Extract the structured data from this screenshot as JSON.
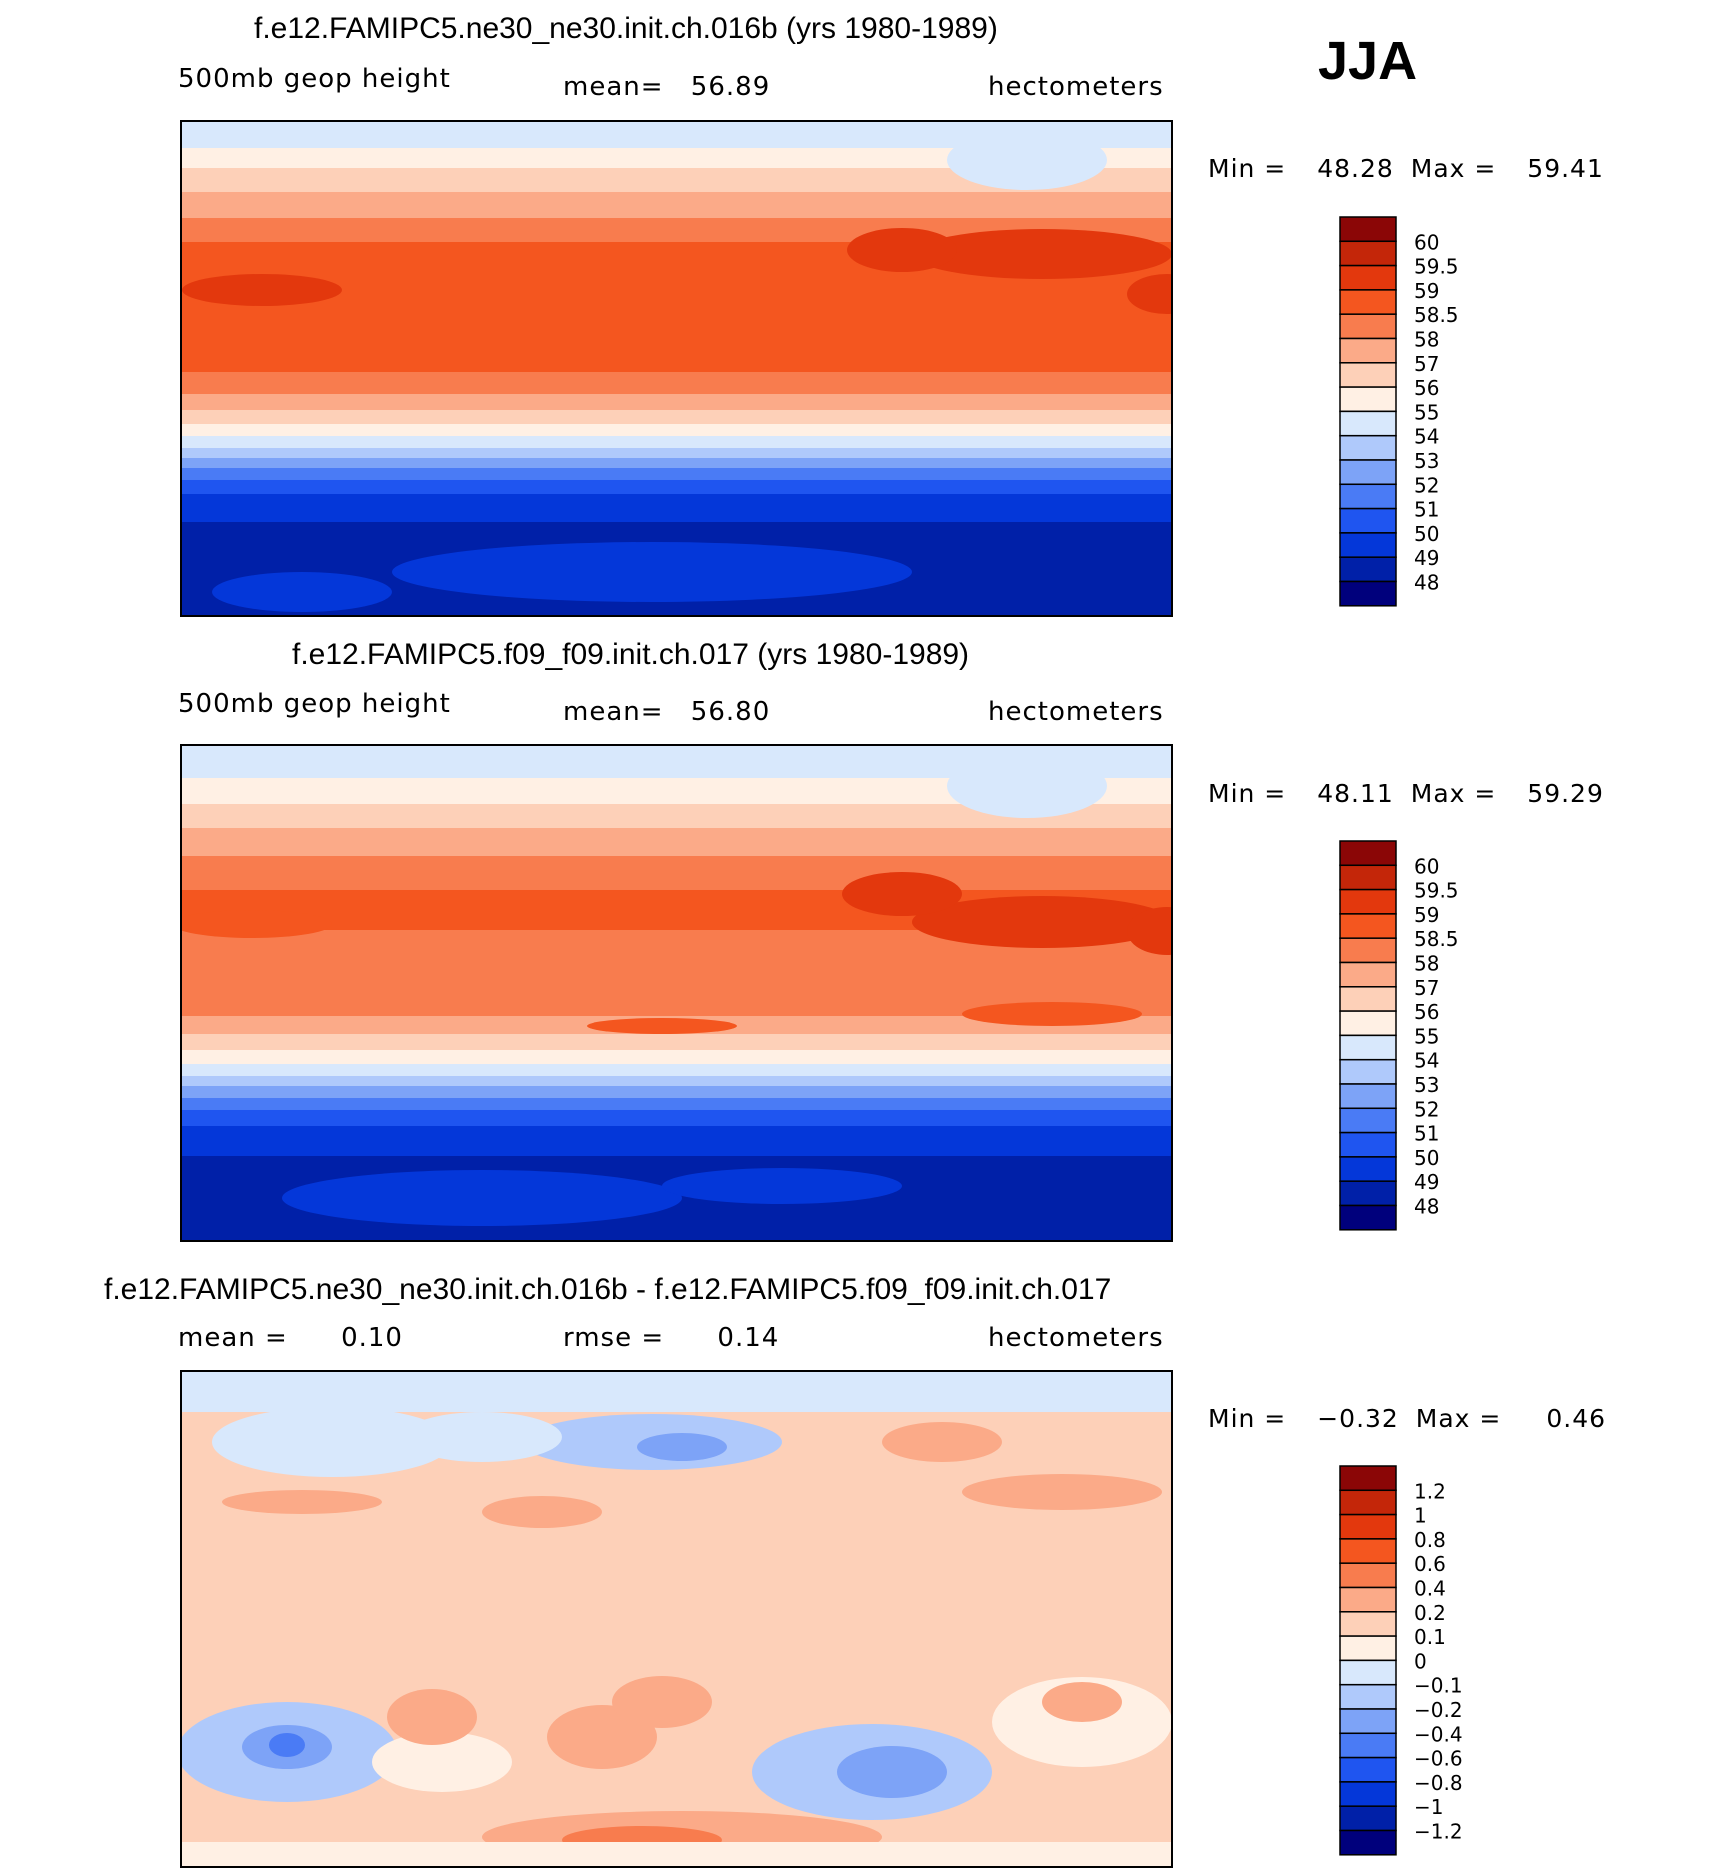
{
  "season": "JJA",
  "units": "hectometers",
  "colors": {
    "abs_scale": [
      "#00007c",
      "#0020a8",
      "#0437d9",
      "#1f55f0",
      "#4a7bf5",
      "#7da3f7",
      "#afc9fb",
      "#d8e8fc",
      "#fff0e4",
      "#fdd0b8",
      "#fbaa88",
      "#f87c4e",
      "#f4561f",
      "#e3380d",
      "#c42609",
      "#8b0606"
    ],
    "diff_scale": [
      "#00007c",
      "#0020a8",
      "#0437d9",
      "#1f55f0",
      "#4a7bf5",
      "#7da3f7",
      "#afc9fb",
      "#d8e8fc",
      "#fff0e4",
      "#fdd0b8",
      "#fbaa88",
      "#f87c4e",
      "#f4561f",
      "#e3380d",
      "#c42609",
      "#8b0606"
    ]
  },
  "chart_data": [
    {
      "type": "heatmap",
      "title": "f.e12.FAMIPC5.ne30_ne30.init.ch.016b (yrs 1980-1989)",
      "variable": "500mb geop height",
      "mean_label": "mean=",
      "mean": "56.89",
      "units": "hectometers",
      "min_label": "Min =",
      "min": "48.28",
      "max_label": "Max =",
      "max": "59.41",
      "contour_levels": [
        "60",
        "59.5",
        "59",
        "58.5",
        "58",
        "57",
        "56",
        "55",
        "54",
        "53",
        "52",
        "51",
        "50",
        "49",
        "48"
      ]
    },
    {
      "type": "heatmap",
      "title": "f.e12.FAMIPC5.f09_f09.init.ch.017 (yrs 1980-1989)",
      "variable": "500mb geop height",
      "mean_label": "mean=",
      "mean": "56.80",
      "units": "hectometers",
      "min_label": "Min =",
      "min": "48.11",
      "max_label": "Max =",
      "max": "59.29",
      "contour_levels": [
        "60",
        "59.5",
        "59",
        "58.5",
        "58",
        "57",
        "56",
        "55",
        "54",
        "53",
        "52",
        "51",
        "50",
        "49",
        "48"
      ]
    },
    {
      "type": "heatmap",
      "title": "f.e12.FAMIPC5.ne30_ne30.init.ch.016b - f.e12.FAMIPC5.f09_f09.init.ch.017",
      "mean_label": "mean =",
      "mean": "0.10",
      "rmse_label": "rmse =",
      "rmse": "0.14",
      "units": "hectometers",
      "min_label": "Min =",
      "min": "−0.32",
      "max_label": "Max =",
      "max": "0.46",
      "contour_levels": [
        "1.2",
        "1",
        "0.8",
        "0.6",
        "0.4",
        "0.2",
        "0.1",
        "0",
        "−0.1",
        "−0.2",
        "−0.4",
        "−0.6",
        "−0.8",
        "−1",
        "−1.2"
      ]
    }
  ]
}
